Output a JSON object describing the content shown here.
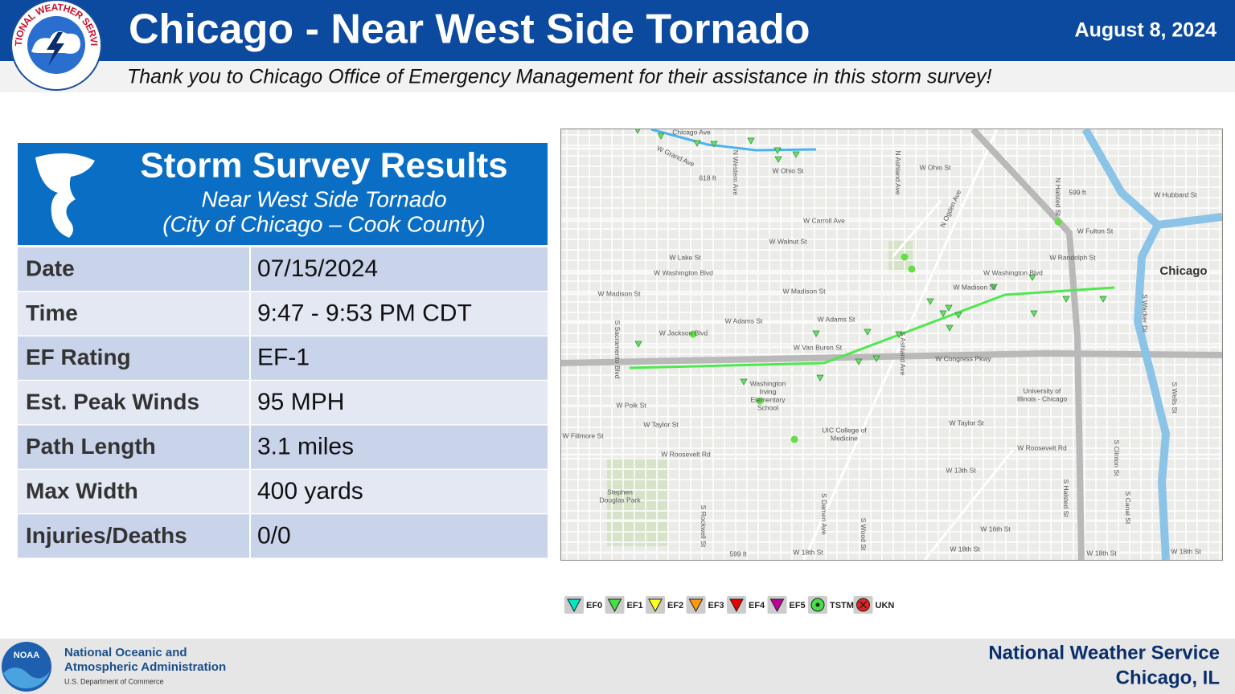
{
  "header": {
    "logo_text": "NATIONAL WEATHER SERVICE",
    "title": "Chicago - Near West Side Tornado",
    "date": "August 8, 2024",
    "subtitle": "Thank you to Chicago Office of Emergency Management for their assistance in this storm survey!"
  },
  "summary": {
    "title": "Storm Survey Results",
    "subtitle": "Near West Side Tornado",
    "location": "(City of Chicago – Cook County)",
    "rows": [
      [
        "Date",
        "07/15/2024"
      ],
      [
        "Time",
        "9:47 - 9:53 PM CDT"
      ],
      [
        "EF Rating",
        "EF-1"
      ],
      [
        "Est. Peak Winds",
        "95 MPH"
      ],
      [
        "Path Length",
        "3.1 miles"
      ],
      [
        "Max Width",
        "400 yards"
      ],
      [
        "Injuries/Deaths",
        "0/0"
      ]
    ]
  },
  "map": {
    "city": "Chicago",
    "labels": [
      "Chicago Ave",
      "W Grand Ave",
      "618 ft",
      "W Ohio St",
      "W Ohio St",
      "599 ft",
      "W Hubbard St",
      "W Carroll Ave",
      "W Fulton St",
      "W Walnut St",
      "W Lake St",
      "W Randolph St",
      "W Washington Blvd",
      "W Washington Blvd",
      "W Madison St",
      "W Madison St",
      "W Madison St",
      "W Adams St",
      "W Adams St",
      "W Jackson Blvd",
      "W Van Buren St",
      "W Congress Pkwy",
      "W Polk St",
      "W Taylor St",
      "W Taylor St",
      "W Fillmore St",
      "W Roosevelt Rd",
      "W Roosevelt Rd",
      "W 13th St",
      "W 16th St",
      "W 18th St",
      "W 18th St",
      "W 18th St",
      "W 18th St",
      "599 ft",
      "Stephen",
      "Douglas Park",
      "University of",
      "Illinois - Chicago",
      "UIC College of",
      "Medicine",
      "Washington",
      "Irving",
      "Elementary",
      "School",
      "N Ashland Ave",
      "N Ogden Ave",
      "S Ashland Ave",
      "S Damen Ave",
      "S Wood St",
      "S Halsted St",
      "S Canal St",
      "S Clinton St",
      "N Western Ave",
      "S Sacramento Blvd",
      "S Rockwell St",
      "N Halsted St",
      "S Wacker Dr",
      "S Wells St"
    ]
  },
  "legend": [
    "EF0",
    "EF1",
    "EF2",
    "EF3",
    "EF4",
    "EF5",
    "TSTM",
    "UKN"
  ],
  "footer": {
    "logo_text": "NOAA",
    "agency": [
      "National Oceanic and",
      "Atmospheric Administration"
    ],
    "department": "U.S. Department of Commerce",
    "office": "National Weather Service",
    "location": "Chicago, IL"
  }
}
